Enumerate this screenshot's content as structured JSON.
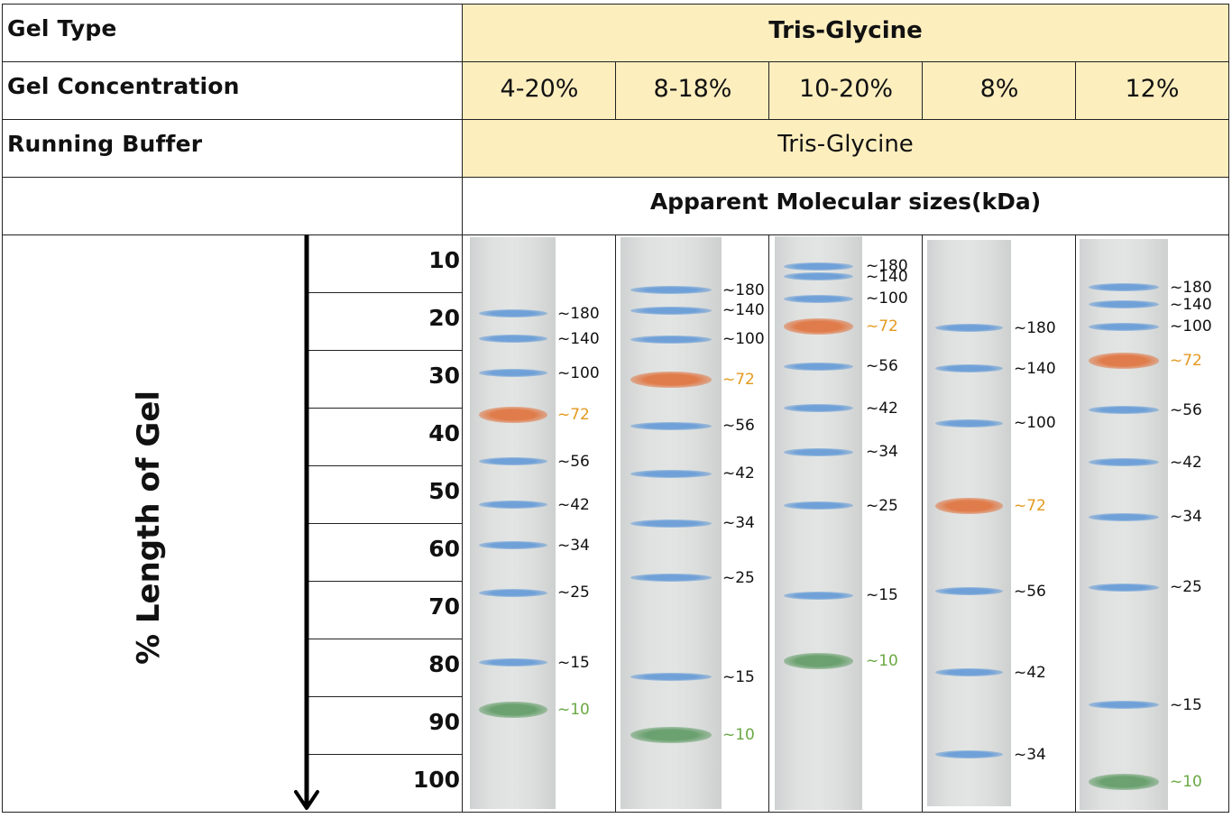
{
  "table": {
    "gel_type_label": "Gel Type",
    "gel_type_value": "Tris-Glycine",
    "gel_concentration_label": "Gel Concentration",
    "concentrations": [
      "4-20%",
      "8-18%",
      "10-20%",
      "8%",
      "12%"
    ],
    "running_buffer_label": "Running Buffer",
    "running_buffer_value": "Tris-Glycine",
    "apparent_sizes_label": "Apparent Molecular sizes(kDa)",
    "length_axis_label": "% Length of Gel",
    "length_ticks": [
      "10",
      "20",
      "30",
      "40",
      "50",
      "60",
      "70",
      "80",
      "90",
      "100"
    ]
  },
  "colors": {
    "header_yellow": "#fdeebe",
    "band_blue": "#5b95d6",
    "band_orange": "#e0703a",
    "band_green": "#5e9a63",
    "label_orange": "#e39a1e",
    "label_green": "#6aa844"
  },
  "lanes": [
    {
      "concentration": "4-20%",
      "bands": [
        {
          "label": "~180",
          "pos_pct": 13.4,
          "color": "blue"
        },
        {
          "label": "~140",
          "pos_pct": 17.8,
          "color": "blue"
        },
        {
          "label": "~100",
          "pos_pct": 23.8,
          "color": "blue"
        },
        {
          "label": "~72",
          "pos_pct": 31.1,
          "color": "orange"
        },
        {
          "label": "~56",
          "pos_pct": 39.2,
          "color": "blue"
        },
        {
          "label": "~42",
          "pos_pct": 46.8,
          "color": "blue"
        },
        {
          "label": "~34",
          "pos_pct": 53.9,
          "color": "blue"
        },
        {
          "label": "~25",
          "pos_pct": 62.2,
          "color": "blue"
        },
        {
          "label": "~15",
          "pos_pct": 74.4,
          "color": "blue"
        },
        {
          "label": "~10",
          "pos_pct": 82.7,
          "color": "green"
        }
      ]
    },
    {
      "concentration": "8-18%",
      "bands": [
        {
          "label": "~180",
          "pos_pct": 9.3,
          "color": "blue"
        },
        {
          "label": "~140",
          "pos_pct": 12.8,
          "color": "blue"
        },
        {
          "label": "~100",
          "pos_pct": 17.9,
          "color": "blue"
        },
        {
          "label": "~72",
          "pos_pct": 24.9,
          "color": "orange"
        },
        {
          "label": "~56",
          "pos_pct": 33.0,
          "color": "blue"
        },
        {
          "label": "~42",
          "pos_pct": 41.4,
          "color": "blue"
        },
        {
          "label": "~34",
          "pos_pct": 50.0,
          "color": "blue"
        },
        {
          "label": "~25",
          "pos_pct": 59.6,
          "color": "blue"
        },
        {
          "label": "~15",
          "pos_pct": 76.9,
          "color": "blue"
        },
        {
          "label": "~10",
          "pos_pct": 87.0,
          "color": "green"
        }
      ]
    },
    {
      "concentration": "10-20%",
      "bands": [
        {
          "label": "~180",
          "pos_pct": 5.2,
          "color": "blue"
        },
        {
          "label": "~140",
          "pos_pct": 7.0,
          "color": "blue"
        },
        {
          "label": "~100",
          "pos_pct": 10.9,
          "color": "blue"
        },
        {
          "label": "~72",
          "pos_pct": 15.7,
          "color": "orange"
        },
        {
          "label": "~56",
          "pos_pct": 22.7,
          "color": "blue"
        },
        {
          "label": "~42",
          "pos_pct": 30.0,
          "color": "blue"
        },
        {
          "label": "~34",
          "pos_pct": 37.6,
          "color": "blue"
        },
        {
          "label": "~25",
          "pos_pct": 47.0,
          "color": "blue"
        },
        {
          "label": "~15",
          "pos_pct": 62.6,
          "color": "blue"
        },
        {
          "label": "~10",
          "pos_pct": 74.0,
          "color": "green"
        }
      ]
    },
    {
      "concentration": "8%",
      "bands": [
        {
          "label": "~180",
          "pos_pct": 15.6,
          "color": "blue"
        },
        {
          "label": "~140",
          "pos_pct": 22.7,
          "color": "blue"
        },
        {
          "label": "~100",
          "pos_pct": 32.4,
          "color": "blue"
        },
        {
          "label": "~72",
          "pos_pct": 47.0,
          "color": "orange"
        },
        {
          "label": "~56",
          "pos_pct": 62.1,
          "color": "blue"
        },
        {
          "label": "~42",
          "pos_pct": 76.4,
          "color": "blue"
        },
        {
          "label": "~34",
          "pos_pct": 90.9,
          "color": "blue"
        }
      ]
    },
    {
      "concentration": "12%",
      "bands": [
        {
          "label": "~180",
          "pos_pct": 8.5,
          "color": "blue"
        },
        {
          "label": "~140",
          "pos_pct": 11.5,
          "color": "blue"
        },
        {
          "label": "~100",
          "pos_pct": 15.4,
          "color": "blue"
        },
        {
          "label": "~72",
          "pos_pct": 21.4,
          "color": "orange"
        },
        {
          "label": "~56",
          "pos_pct": 30.0,
          "color": "blue"
        },
        {
          "label": "~42",
          "pos_pct": 39.1,
          "color": "blue"
        },
        {
          "label": "~34",
          "pos_pct": 48.7,
          "color": "blue"
        },
        {
          "label": "~25",
          "pos_pct": 61.0,
          "color": "blue"
        },
        {
          "label": "~15",
          "pos_pct": 81.6,
          "color": "blue"
        },
        {
          "label": "~10",
          "pos_pct": 95.1,
          "color": "green"
        }
      ]
    }
  ]
}
